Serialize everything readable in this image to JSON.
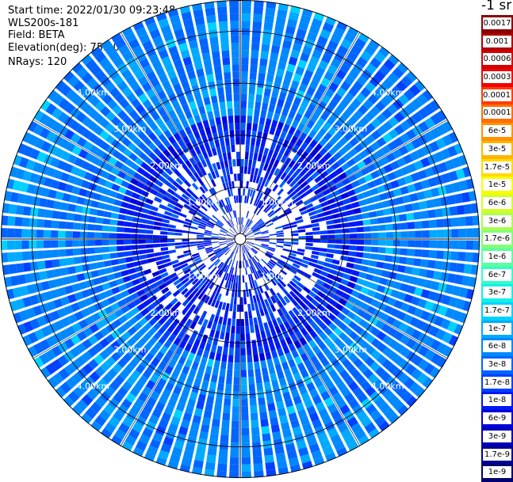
{
  "header": {
    "start_time": "Start time: 2022/01/30 09:23:48",
    "instrument": "WLS200s-181",
    "field": "Field: BETA",
    "elevation": "Elevation(deg): 75.00",
    "nrays": "NRays: 120"
  },
  "colorbar": {
    "title": "-1 sr",
    "levels": [
      {
        "label": "0.0017",
        "color": "#8b0000"
      },
      {
        "label": "0.001",
        "color": "#b00000"
      },
      {
        "label": "0.0006",
        "color": "#d60000"
      },
      {
        "label": "0.0003",
        "color": "#f20000"
      },
      {
        "label": "0.00017",
        "color": "#ff3c00"
      },
      {
        "label": "0.0001",
        "color": "#ff6e00"
      },
      {
        "label": "6e-5",
        "color": "#ff9200"
      },
      {
        "label": "3e-5",
        "color": "#ffb400"
      },
      {
        "label": "1.7e-5",
        "color": "#ffda00"
      },
      {
        "label": "1e-5",
        "color": "#f5ff00"
      },
      {
        "label": "6e-6",
        "color": "#d2ff28"
      },
      {
        "label": "3e-6",
        "color": "#aaff50"
      },
      {
        "label": "1.7e-6",
        "color": "#82ff78"
      },
      {
        "label": "1e-6",
        "color": "#5affa0"
      },
      {
        "label": "6e-7",
        "color": "#32ffc8"
      },
      {
        "label": "3e-7",
        "color": "#14f0e6"
      },
      {
        "label": "1.7e-7",
        "color": "#00d2ff"
      },
      {
        "label": "1e-7",
        "color": "#00aaff"
      },
      {
        "label": "6e-8",
        "color": "#0088ff"
      },
      {
        "label": "3e-8",
        "color": "#0064ff"
      },
      {
        "label": "1.7e-8",
        "color": "#0040ff"
      },
      {
        "label": "1e-8",
        "color": "#0018f5"
      },
      {
        "label": "6e-9",
        "color": "#0000d8"
      },
      {
        "label": "3e-9",
        "color": "#0000b4"
      },
      {
        "label": "1.7e-9",
        "color": "#000090"
      },
      {
        "label": "1e-9",
        "color": "#000070"
      }
    ]
  },
  "chart_data": {
    "type": "heatmap",
    "projection": "polar-ppi",
    "n_rays": 120,
    "range_max_km": 4.6,
    "range_rings": [
      {
        "km": 1,
        "label": "1.00km"
      },
      {
        "km": 2,
        "label": "2.00km"
      },
      {
        "km": 3,
        "label": "3.00km"
      },
      {
        "km": 4,
        "label": "4.00km"
      }
    ],
    "value_description": "backscatter mostly 1e-8 to 1e-7 sr-1, blue tones; sparse near centre",
    "grid": true
  }
}
